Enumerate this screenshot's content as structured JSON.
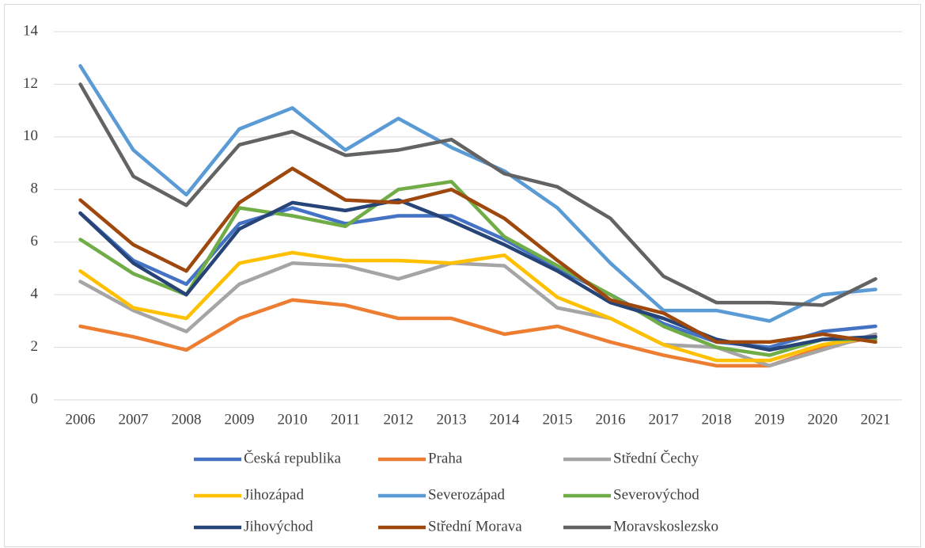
{
  "chart_data": {
    "type": "line",
    "categories": [
      "2006",
      "2007",
      "2008",
      "2009",
      "2010",
      "2011",
      "2012",
      "2013",
      "2014",
      "2015",
      "2016",
      "2017",
      "2018",
      "2019",
      "2020",
      "2021"
    ],
    "series": [
      {
        "name": "Česká republika",
        "color": "#4472c4",
        "values": [
          7.1,
          5.3,
          4.4,
          6.7,
          7.3,
          6.7,
          7.0,
          7.0,
          6.1,
          5.0,
          4.0,
          2.9,
          2.2,
          2.0,
          2.6,
          2.8
        ]
      },
      {
        "name": "Praha",
        "color": "#ed7d31",
        "values": [
          2.8,
          2.4,
          1.9,
          3.1,
          3.8,
          3.6,
          3.1,
          3.1,
          2.5,
          2.8,
          2.2,
          1.7,
          1.3,
          1.3,
          2.0,
          2.4
        ]
      },
      {
        "name": "Střední Čechy",
        "color": "#a5a5a5",
        "values": [
          4.5,
          3.4,
          2.6,
          4.4,
          5.2,
          5.1,
          4.6,
          5.2,
          5.1,
          3.5,
          3.1,
          2.1,
          2.0,
          1.3,
          1.9,
          2.5
        ]
      },
      {
        "name": "Jihozápad",
        "color": "#ffc000",
        "values": [
          4.9,
          3.5,
          3.1,
          5.2,
          5.6,
          5.3,
          5.3,
          5.2,
          5.5,
          3.9,
          3.1,
          2.1,
          1.5,
          1.5,
          2.1,
          2.4
        ]
      },
      {
        "name": "Severozápad",
        "color": "#5b9bd5",
        "values": [
          12.7,
          9.5,
          7.8,
          10.3,
          11.1,
          9.5,
          10.7,
          9.6,
          8.7,
          7.3,
          5.2,
          3.4,
          3.4,
          3.0,
          4.0,
          4.2
        ]
      },
      {
        "name": "Severovýchod",
        "color": "#70ad47",
        "values": [
          6.1,
          4.8,
          4.0,
          7.3,
          7.0,
          6.6,
          8.0,
          8.3,
          6.2,
          5.1,
          4.0,
          2.8,
          2.0,
          1.7,
          2.3,
          2.3
        ]
      },
      {
        "name": "Jihovýchod",
        "color": "#264478",
        "values": [
          7.1,
          5.2,
          4.0,
          6.5,
          7.5,
          7.2,
          7.6,
          6.8,
          5.9,
          4.9,
          3.7,
          3.1,
          2.3,
          1.9,
          2.3,
          2.4
        ]
      },
      {
        "name": "Střední Morava",
        "color": "#9e480e",
        "values": [
          7.6,
          5.9,
          4.9,
          7.5,
          8.8,
          7.6,
          7.5,
          8.0,
          6.9,
          5.3,
          3.8,
          3.3,
          2.2,
          2.2,
          2.5,
          2.2
        ]
      },
      {
        "name": "Moravskoslezsko",
        "color": "#636363",
        "values": [
          12.0,
          8.5,
          7.4,
          9.7,
          10.2,
          9.3,
          9.5,
          9.9,
          8.6,
          8.1,
          6.9,
          4.7,
          3.7,
          3.7,
          3.6,
          4.6
        ]
      }
    ],
    "ylim": [
      0,
      14
    ],
    "yticks": [
      0,
      2,
      4,
      6,
      8,
      10,
      12,
      14
    ],
    "grid": true
  }
}
